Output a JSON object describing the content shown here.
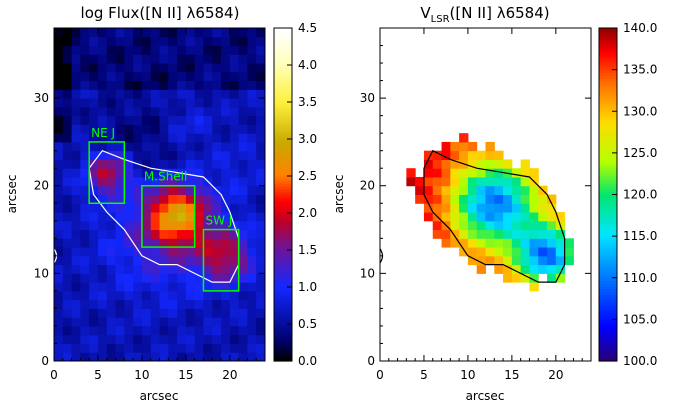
{
  "chart_data": [
    {
      "type": "heatmap",
      "title": "log Flux([N II] λ6584)",
      "xlabel": "arcsec",
      "ylabel": "arcsec",
      "xlim": [
        0,
        24
      ],
      "ylim": [
        0,
        38
      ],
      "x_ticks": [
        "0",
        "5",
        "10",
        "15",
        "20"
      ],
      "y_ticks": [
        "0",
        "10",
        "20",
        "30"
      ],
      "colorbar": {
        "min": 0.0,
        "max": 4.5,
        "ticks": [
          "0.0",
          "0.5",
          "1.0",
          "1.5",
          "2.0",
          "2.5",
          "3.0",
          "3.5",
          "4.0",
          "4.5"
        ],
        "colormap": "rainbow+white"
      },
      "background_value": 0.6,
      "blobs": [
        {
          "x": 6.2,
          "y": 21.5,
          "peak": 1.3,
          "sigma": 1.8
        },
        {
          "x": 14,
          "y": 16.8,
          "peak": 1.9,
          "sigma": 2.4
        },
        {
          "x": 19.5,
          "y": 12,
          "peak": 1.2,
          "sigma": 2.2
        },
        {
          "x": 12,
          "y": 14,
          "peak": 0.6,
          "sigma": 4.5
        },
        {
          "x": 10,
          "y": 25,
          "peak": -0.3,
          "sigma": 4
        },
        {
          "x": 15,
          "y": 27,
          "peak": 0.3,
          "sigma": 2
        },
        {
          "x": 21,
          "y": 22,
          "peak": 0.2,
          "sigma": 2.5
        }
      ],
      "boxes": [
        {
          "label": "NE J",
          "x0": 4,
          "x1": 8,
          "y0": 18,
          "y1": 25
        },
        {
          "label": "M.Shell",
          "x0": 10,
          "x1": 16,
          "y0": 13,
          "y1": 20
        },
        {
          "label": "SW J",
          "x0": 17,
          "x1": 21,
          "y0": 8,
          "y1": 15
        }
      ],
      "contour_color": "#ffffff",
      "contour": [
        [
          4,
          22
        ],
        [
          5.5,
          24
        ],
        [
          8,
          23
        ],
        [
          11,
          22
        ],
        [
          14,
          21.5
        ],
        [
          17,
          21
        ],
        [
          19,
          19
        ],
        [
          20,
          17
        ],
        [
          21,
          14
        ],
        [
          21,
          11
        ],
        [
          20,
          9
        ],
        [
          18,
          9
        ],
        [
          16,
          10
        ],
        [
          14,
          11
        ],
        [
          12,
          11
        ],
        [
          10,
          12
        ],
        [
          8,
          15
        ],
        [
          6,
          17
        ],
        [
          4.5,
          19
        ],
        [
          4,
          22
        ]
      ],
      "edge_marker": {
        "x": 0,
        "y": 12
      }
    },
    {
      "type": "heatmap",
      "title_main": "V",
      "title_sub": "LSR",
      "title_rest": "([N II] λ6584)",
      "xlabel": "arcsec",
      "ylabel": "arcsec",
      "xlim": [
        0,
        24
      ],
      "ylim": [
        0,
        38
      ],
      "x_ticks": [
        "0",
        "5",
        "10",
        "15",
        "20"
      ],
      "y_ticks": [
        "0",
        "10",
        "20",
        "30"
      ],
      "colorbar": {
        "min": 100.0,
        "max": 140.0,
        "ticks": [
          "100.0",
          "105.0",
          "110.0",
          "115.0",
          "120.0",
          "125.0",
          "130.0",
          "135.0",
          "140.0"
        ],
        "colormap": "rainbow"
      },
      "mask_center": [
        13,
        17
      ],
      "mask_angle_deg": -38,
      "mask_semi_axes": [
        10.5,
        6.3
      ],
      "velocity_base": 136,
      "velocity_dips": [
        {
          "x": 13,
          "y": 18,
          "depth": 26,
          "sigma": 3.4
        },
        {
          "x": 19,
          "y": 12,
          "depth": 26,
          "sigma": 2.6
        }
      ],
      "contour_color": "#000000",
      "contour": [
        [
          5,
          22
        ],
        [
          6,
          24
        ],
        [
          8,
          23
        ],
        [
          11,
          22
        ],
        [
          14,
          21.5
        ],
        [
          17,
          21
        ],
        [
          19,
          19
        ],
        [
          20,
          17
        ],
        [
          21,
          14
        ],
        [
          21,
          11
        ],
        [
          20,
          9
        ],
        [
          18,
          9
        ],
        [
          16,
          10
        ],
        [
          14,
          11
        ],
        [
          12,
          11
        ],
        [
          10,
          12
        ],
        [
          8,
          15
        ],
        [
          6,
          17
        ],
        [
          5,
          19
        ],
        [
          5,
          22
        ]
      ],
      "edge_marker": {
        "x": 0,
        "y": 12
      }
    }
  ]
}
